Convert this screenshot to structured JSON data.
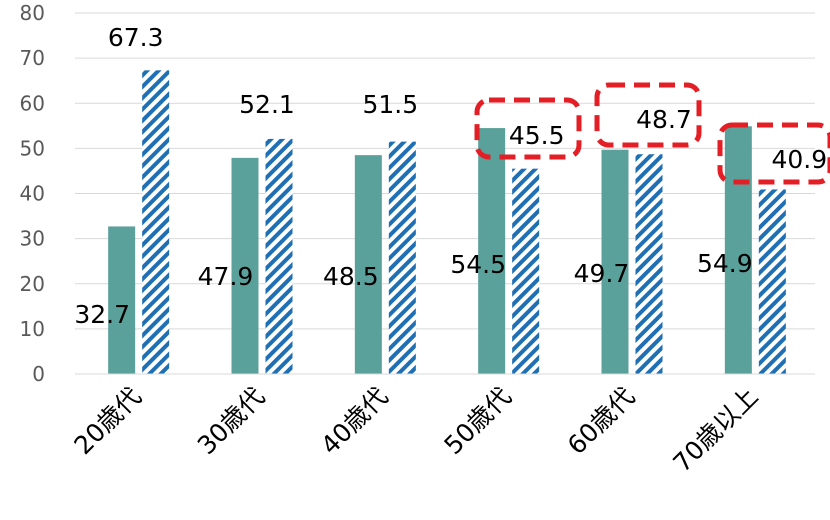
{
  "chart_data": {
    "type": "bar",
    "categories": [
      "20歳代",
      "30歳代",
      "40歳代",
      "50歳代",
      "60歳代",
      "70歳以上"
    ],
    "series": [
      {
        "values": [
          32.7,
          47.9,
          48.5,
          54.5,
          49.7,
          54.9
        ],
        "color": "#5ba19b",
        "pattern": "solid"
      },
      {
        "values": [
          67.3,
          52.1,
          51.5,
          45.5,
          48.7,
          40.9
        ],
        "color": "#1f6fb5",
        "pattern": "diagonal-hatch"
      }
    ],
    "ylim": [
      0,
      80
    ],
    "yticks": [
      0,
      10,
      20,
      30,
      40,
      50,
      60,
      70,
      80
    ],
    "grid": true,
    "highlighted": [
      {
        "series": 1,
        "category": "50歳代"
      },
      {
        "series": 1,
        "category": "60歳代"
      },
      {
        "series": 1,
        "category": "70歳以上"
      }
    ],
    "highlight_color": "#e31e24"
  }
}
